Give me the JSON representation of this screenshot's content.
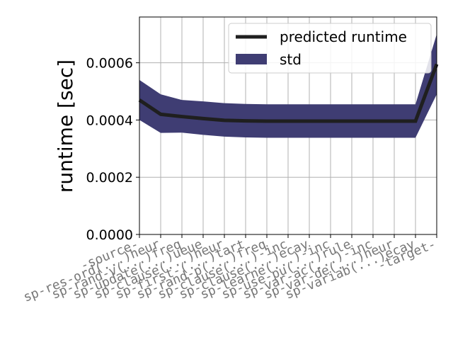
{
  "chart_data": {
    "type": "line",
    "title": "",
    "xlabel": "",
    "ylabel": "runtime [sec]",
    "categories": [
      "-source-",
      "sp-res-ord(...)heur",
      "sp-rand-v(...)freq",
      "sp-update(...)ueue",
      "sp-clause(...)heur",
      "sp-first-(...)tart",
      "sp-rand-p(...)freq",
      "sp-clause(...)-inc",
      "sp-clause(...)ecay",
      "sp-learne(...)-inc",
      "sp-use-pu(...)rule",
      "sp-var-ac(...)-inc",
      "sp-var-de(...)heur",
      "sp-variab(...)ecay",
      "-target-"
    ],
    "series": [
      {
        "name": "predicted runtime",
        "color": "#1f1f1f",
        "values": [
          0.00047,
          0.00042,
          0.000412,
          0.000405,
          0.000399,
          0.000397,
          0.000396,
          0.000396,
          0.000396,
          0.000396,
          0.000396,
          0.000396,
          0.000396,
          0.000396,
          0.000595
        ]
      }
    ],
    "band": {
      "name": "std",
      "color": "#3f3d73",
      "upper": [
        0.00054,
        0.00049,
        0.00047,
        0.000465,
        0.000459,
        0.000456,
        0.000455,
        0.000455,
        0.000455,
        0.000455,
        0.000455,
        0.000455,
        0.000455,
        0.000455,
        0.0007
      ],
      "lower": [
        0.0004,
        0.000355,
        0.000356,
        0.000348,
        0.000342,
        0.000339,
        0.000338,
        0.000338,
        0.000338,
        0.000338,
        0.000338,
        0.000338,
        0.000338,
        0.000338,
        0.00049
      ]
    },
    "yticks": [
      "0.0000",
      "0.0002",
      "0.0004",
      "0.0006"
    ],
    "ytick_values": [
      0,
      0.0002,
      0.0004,
      0.0006
    ],
    "ylim": [
      0,
      0.00076
    ],
    "grid": true,
    "legend_position": "top-right"
  }
}
